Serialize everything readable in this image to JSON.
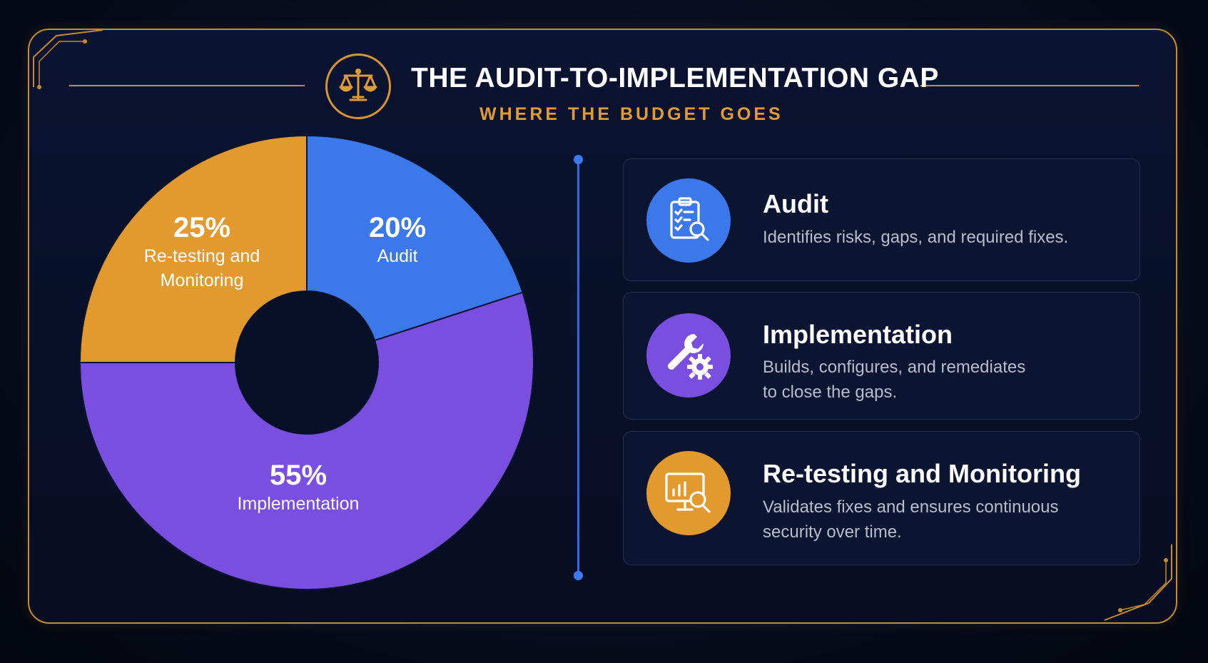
{
  "header": {
    "title": "THE AUDIT-TO-IMPLEMENTATION GAP",
    "subtitle": "WHERE THE BUDGET GOES",
    "logo_icon": "scales-of-justice-icon"
  },
  "chart_data": {
    "type": "pie",
    "donut": true,
    "title": "THE AUDIT-TO-IMPLEMENTATION GAP",
    "subtitle": "WHERE THE BUDGET GOES",
    "categories": [
      "Audit",
      "Implementation",
      "Re-testing and Monitoring"
    ],
    "values": [
      20,
      55,
      25
    ],
    "colors": [
      "#3b78ea",
      "#7a4fe0",
      "#e29a2e"
    ],
    "labels": [
      {
        "pct": "20%",
        "name": "Audit"
      },
      {
        "pct": "55%",
        "name": "Implementation"
      },
      {
        "pct": "25%",
        "name_line1": "Re-testing and",
        "name_line2": "Monitoring"
      }
    ]
  },
  "cards": [
    {
      "title": "Audit",
      "desc_line1": "Identifies risks, gaps, and required fixes.",
      "desc_line2": "",
      "icon": "clipboard-checklist-search-icon",
      "color": "#3b78ea"
    },
    {
      "title": "Implementation",
      "desc_line1": "Builds, configures, and remediates",
      "desc_line2": "to close the gaps.",
      "icon": "wrench-gear-icon",
      "color": "#7a4fe0"
    },
    {
      "title": "Re-testing and Monitoring",
      "desc_line1": "Validates fixes and ensures continuous",
      "desc_line2": "security over time.",
      "icon": "monitor-chart-search-icon",
      "color": "#e29a2e"
    }
  ],
  "colors": {
    "frame": "#c98a2b",
    "accent_gold": "#e19b36",
    "divider_blue": "#2d6ae6"
  }
}
